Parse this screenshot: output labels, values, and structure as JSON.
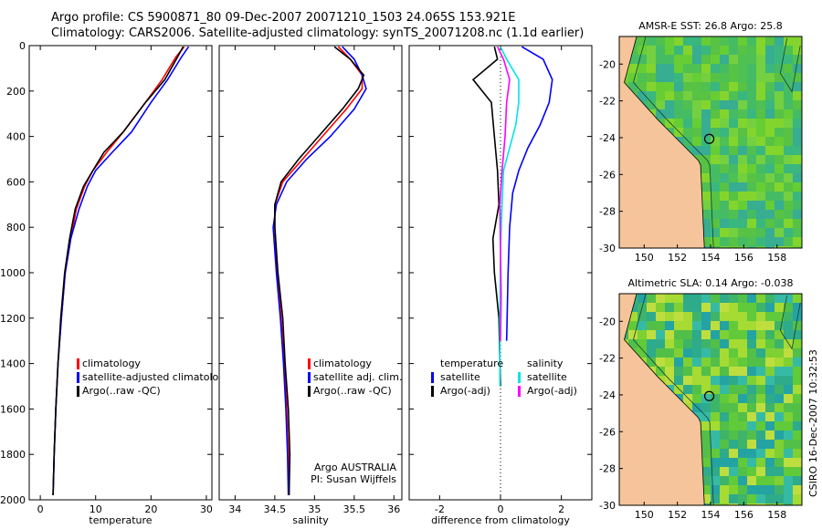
{
  "header": {
    "line1": "Argo profile: CS 5900871_80 09-Dec-2007 20071210_1503 24.065S 153.921E",
    "line2": "Climatology: CARS2006. Satellite-adjusted climatology: synTS_20071208.nc (1.1d earlier)"
  },
  "credit": "CSIRO 16-Dec-2007 10:32:53",
  "colors": {
    "climatology": "#ff0000",
    "satellite": "#0000ff",
    "argo": "#000000",
    "sal_satellite": "#00e5e5",
    "sal_argo": "#ff00ff",
    "land": "#f5c49a"
  },
  "chart_data": [
    {
      "type": "line",
      "xlabel": "temperature",
      "xlim": [
        -2,
        31
      ],
      "ylim": [
        2000,
        0
      ],
      "xticks": [
        0,
        10,
        20,
        30
      ],
      "yticks": [
        0,
        200,
        400,
        600,
        800,
        1000,
        1200,
        1400,
        1600,
        1800,
        2000
      ],
      "y_inverted": true,
      "legend": [
        "climatology",
        "satellite-adjusted climatology",
        "Argo(..raw -QC)"
      ],
      "legend_position": "lower-right",
      "series": [
        {
          "name": "climatology",
          "color": "#ff0000",
          "x": [
            26.0,
            24.5,
            22.0,
            19.0,
            15.0,
            12.0,
            9.5,
            8.0,
            6.5,
            5.5,
            4.5,
            3.8,
            3.2,
            2.8,
            2.5,
            2.3
          ],
          "y": [
            5,
            50,
            150,
            250,
            380,
            470,
            550,
            620,
            720,
            850,
            1000,
            1200,
            1400,
            1600,
            1800,
            1980
          ]
        },
        {
          "name": "satellite-adjusted climatology",
          "color": "#0000ff",
          "x": [
            26.8,
            25.5,
            23.0,
            20.0,
            16.5,
            13.0,
            10.0,
            8.5,
            7.0,
            5.5,
            4.5,
            3.8,
            3.2,
            2.8,
            2.5,
            2.3
          ],
          "y": [
            5,
            50,
            150,
            250,
            380,
            470,
            550,
            620,
            720,
            850,
            1000,
            1200,
            1400,
            1600,
            1800,
            1980
          ]
        },
        {
          "name": "Argo(..raw -QC)",
          "color": "#000000",
          "x": [
            25.8,
            24.8,
            22.5,
            19.0,
            15.0,
            11.5,
            9.5,
            7.8,
            6.3,
            5.3,
            4.4,
            3.7,
            3.2,
            2.8,
            2.5,
            2.3
          ],
          "y": [
            5,
            50,
            150,
            250,
            380,
            470,
            550,
            620,
            720,
            850,
            1000,
            1200,
            1400,
            1600,
            1800,
            1980
          ]
        }
      ]
    },
    {
      "type": "line",
      "xlabel": "salinity",
      "xlim": [
        33.8,
        36.1
      ],
      "ylim": [
        2000,
        0
      ],
      "xticks": [
        34,
        34.5,
        35,
        35.5,
        36
      ],
      "xticklabels": [
        "34",
        "34.5",
        "35",
        "35.5",
        "36"
      ],
      "y_inverted": true,
      "legend": [
        "climatology",
        "satellite adj. clim.",
        "Argo(..raw -QC)"
      ],
      "legend_position": "lower-right",
      "annotation": [
        "Argo AUSTRALIA",
        "PI: Susan Wijffels"
      ],
      "series": [
        {
          "name": "climatology",
          "color": "#ff0000",
          "x": [
            35.3,
            35.45,
            35.6,
            35.6,
            35.4,
            35.1,
            34.85,
            34.6,
            34.5,
            34.5,
            34.53,
            34.58,
            34.62,
            34.65,
            34.67,
            34.68
          ],
          "y": [
            5,
            60,
            130,
            190,
            280,
            400,
            500,
            600,
            700,
            800,
            1000,
            1200,
            1400,
            1600,
            1800,
            1980
          ]
        },
        {
          "name": "satellite adj. clim.",
          "color": "#0000ff",
          "x": [
            35.35,
            35.5,
            35.6,
            35.65,
            35.5,
            35.2,
            34.9,
            34.65,
            34.52,
            34.48,
            34.52,
            34.57,
            34.61,
            34.64,
            34.66,
            34.67
          ],
          "y": [
            5,
            60,
            130,
            190,
            280,
            400,
            500,
            600,
            700,
            800,
            1000,
            1200,
            1400,
            1600,
            1800,
            1980
          ]
        },
        {
          "name": "Argo(..raw -QC)",
          "color": "#000000",
          "x": [
            35.25,
            35.45,
            35.62,
            35.55,
            35.35,
            35.05,
            34.8,
            34.58,
            34.5,
            34.5,
            34.54,
            34.6,
            34.63,
            34.67,
            34.69,
            34.68
          ],
          "y": [
            5,
            60,
            130,
            190,
            280,
            400,
            500,
            600,
            700,
            800,
            1000,
            1200,
            1400,
            1600,
            1800,
            1980
          ]
        }
      ]
    },
    {
      "type": "line",
      "xlabel": "difference from climatology",
      "xlim": [
        -3,
        3
      ],
      "ylim": [
        2000,
        0
      ],
      "xticks": [
        -2,
        0,
        2
      ],
      "y_inverted": true,
      "legend_groups": [
        {
          "header": "temperature",
          "items": [
            "satellite",
            "Argo(-adj)"
          ]
        },
        {
          "header": "salinity",
          "items": [
            "satellite",
            "Argo(-adj)"
          ]
        }
      ],
      "legend_position": "lower-center",
      "series": [
        {
          "name": "temperature satellite",
          "color": "#0000ff",
          "x": [
            0.7,
            1.4,
            1.7,
            1.6,
            1.3,
            0.9,
            0.6,
            0.4,
            0.3,
            0.25,
            0.2
          ],
          "y": [
            5,
            60,
            150,
            250,
            350,
            450,
            550,
            650,
            800,
            1000,
            1300
          ]
        },
        {
          "name": "temperature Argo(-adj)",
          "color": "#000000",
          "x": [
            -0.2,
            -0.1,
            -0.9,
            -0.3,
            -0.2,
            -0.1,
            -0.05,
            -0.25,
            -0.2,
            -0.05,
            -0.02,
            0.0
          ],
          "y": [
            5,
            60,
            150,
            250,
            400,
            550,
            700,
            850,
            1000,
            1200,
            1400,
            1500
          ]
        },
        {
          "name": "salinity satellite",
          "color": "#00e5e5",
          "x": [
            0.0,
            0.2,
            0.6,
            0.6,
            0.5,
            0.3,
            0.1,
            0.05,
            0.0,
            -0.02,
            -0.02
          ],
          "y": [
            5,
            60,
            150,
            250,
            350,
            450,
            550,
            700,
            900,
            1200,
            1500
          ]
        },
        {
          "name": "salinity Argo(-adj)",
          "color": "#ff00ff",
          "x": [
            -0.1,
            0.1,
            0.3,
            0.2,
            0.15,
            0.05,
            -0.02,
            0.0,
            0.02,
            0.0
          ],
          "y": [
            5,
            60,
            150,
            250,
            400,
            550,
            700,
            900,
            1100,
            1300
          ]
        }
      ]
    },
    {
      "type": "heatmap",
      "title": "AMSR-E SST: 26.8 Argo: 25.8",
      "xlim": [
        148.5,
        159.5
      ],
      "ylim": [
        -30,
        -18.5
      ],
      "xticks": [
        150,
        152,
        154,
        156,
        158
      ],
      "yticks": [
        -20,
        -22,
        -24,
        -26,
        -28,
        -30
      ],
      "marker": {
        "lon": 153.921,
        "lat": -24.065
      }
    },
    {
      "type": "heatmap",
      "title": "Altimetric SLA: 0.14 Argo: -0.038",
      "xlim": [
        148.5,
        159.5
      ],
      "ylim": [
        -30,
        -18.5
      ],
      "xticks": [
        150,
        152,
        154,
        156,
        158
      ],
      "yticks": [
        -20,
        -22,
        -24,
        -26,
        -28,
        -30
      ],
      "marker": {
        "lon": 153.921,
        "lat": -24.065
      }
    }
  ]
}
